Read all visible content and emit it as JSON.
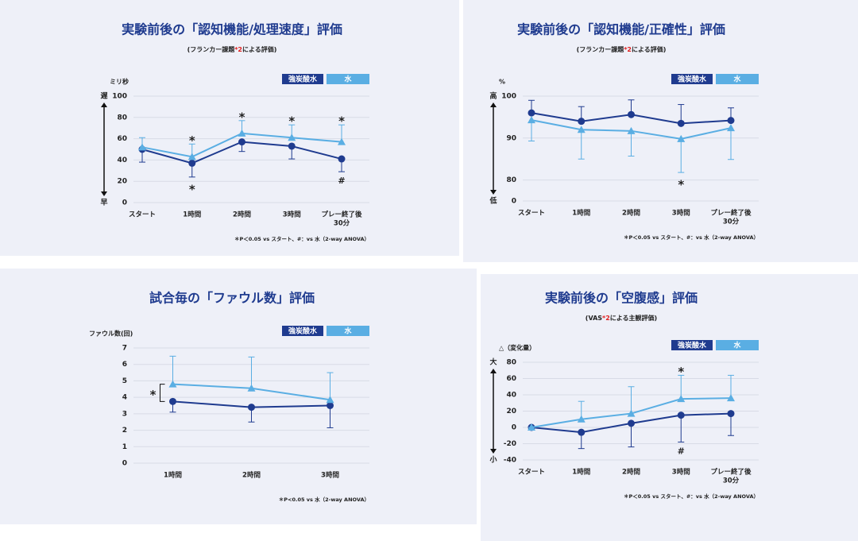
{
  "chart_data": [
    {
      "type": "line",
      "title": "実験前後の「認知機能/処理速度」評価",
      "subtitle": [
        {
          "text": "(フランカー課題"
        },
        {
          "text": "*2",
          "color": "#e02020"
        },
        {
          "text": "による評価)"
        }
      ],
      "y_label": "ミリ秒",
      "direction_labels": [
        "遅",
        "早"
      ],
      "categories": [
        "スタート",
        "1時間",
        "2時間",
        "3時間",
        [
          "プレー終了後",
          "30分"
        ]
      ],
      "ylim": [
        0,
        100
      ],
      "yticks": [
        0,
        20,
        40,
        60,
        80,
        100
      ],
      "grid": true,
      "series": [
        {
          "name": "強炭酸水",
          "color": "#1f3b8f",
          "marker": "circle",
          "error_direction": "down",
          "values": [
            50,
            37,
            57,
            53,
            41
          ],
          "errors": [
            12,
            13,
            9,
            12,
            12
          ]
        },
        {
          "name": "水",
          "color": "#5aaee3",
          "marker": "triangle",
          "error_direction": "up",
          "values": [
            52,
            43,
            65,
            61,
            57
          ],
          "errors": [
            9,
            12,
            12,
            12,
            16
          ]
        }
      ],
      "annotations": [
        {
          "category": 1,
          "text": "*",
          "position": "above"
        },
        {
          "category": 1,
          "text": "*",
          "position": "below"
        },
        {
          "category": 2,
          "text": "*",
          "position": "above"
        },
        {
          "category": 3,
          "text": "*",
          "position": "above"
        },
        {
          "category": 4,
          "text": "*",
          "position": "above"
        },
        {
          "category": 4,
          "text": "#",
          "position": "below"
        }
      ],
      "footnote": "＊P＜0.05 vs スタート、#：vs 水（2-way ANOVA）"
    },
    {
      "type": "line",
      "title": "実験前後の「認知機能/正確性」評価",
      "subtitle": [
        {
          "text": "(フランカー課題"
        },
        {
          "text": "*2",
          "color": "#e02020"
        },
        {
          "text": "による評価)"
        }
      ],
      "y_label": "%",
      "direction_labels": [
        "高",
        "低"
      ],
      "categories": [
        "スタート",
        "1時間",
        "2時間",
        "3時間",
        [
          "プレー終了後",
          "30分"
        ]
      ],
      "ylim": [
        75,
        100
      ],
      "yticks": [
        0,
        80,
        90,
        100
      ],
      "axis_break": true,
      "grid": true,
      "series": [
        {
          "name": "強炭酸水",
          "color": "#1f3b8f",
          "marker": "circle",
          "error_direction": "up",
          "values": [
            96,
            94,
            95.6,
            93.5,
            94.2
          ],
          "errors": [
            3,
            3.5,
            3.5,
            4.5,
            3
          ]
        },
        {
          "name": "水",
          "color": "#5aaee3",
          "marker": "triangle",
          "error_direction": "down",
          "values": [
            94.3,
            92,
            91.7,
            89.8,
            92.4
          ],
          "errors": [
            5,
            7,
            6,
            8,
            7.5
          ]
        }
      ],
      "annotations": [
        {
          "category": 3,
          "text": "*",
          "position": "below"
        }
      ],
      "footnote": "＊P＜0.05 vs スタート、#：vs 水（2-way ANOVA）"
    },
    {
      "type": "line",
      "title": "試合毎の「ファウル数」評価",
      "y_label": "ファウル数(回)",
      "categories": [
        "1時間",
        "2時間",
        "3時間"
      ],
      "ylim": [
        0,
        7
      ],
      "yticks": [
        0,
        1,
        2,
        3,
        4,
        5,
        6,
        7
      ],
      "grid": true,
      "series": [
        {
          "name": "強炭酸水",
          "color": "#1f3b8f",
          "marker": "circle",
          "error_direction": "down",
          "values": [
            3.75,
            3.4,
            3.5
          ],
          "errors": [
            0.65,
            0.9,
            1.35
          ]
        },
        {
          "name": "水",
          "color": "#5aaee3",
          "marker": "triangle",
          "error_direction": "up",
          "values": [
            4.8,
            4.55,
            3.85
          ],
          "errors": [
            1.7,
            1.9,
            1.65
          ]
        }
      ],
      "annotations": [
        {
          "category": 0,
          "text": "*",
          "position": "between"
        }
      ],
      "footnote": "＊P<0.05 vs 水（2-way ANOVA）"
    },
    {
      "type": "line",
      "title": "実験前後の「空腹感」評価",
      "subtitle": [
        {
          "text": "(VAS"
        },
        {
          "text": "*2",
          "color": "#e02020"
        },
        {
          "text": "による主観評価)"
        }
      ],
      "y_label": "△（変化量）",
      "direction_labels": [
        "大",
        "小"
      ],
      "categories": [
        "スタート",
        "1時間",
        "2時間",
        "3時間",
        [
          "プレー終了後",
          "30分"
        ]
      ],
      "ylim": [
        -40,
        80
      ],
      "yticks": [
        -40,
        -20,
        0,
        20,
        40,
        60,
        80
      ],
      "grid": true,
      "series": [
        {
          "name": "強炭酸水",
          "color": "#1f3b8f",
          "marker": "circle",
          "error_direction": "down",
          "values": [
            0,
            -6,
            5,
            15,
            17
          ],
          "errors": [
            0,
            20,
            29,
            33,
            27
          ]
        },
        {
          "name": "水",
          "color": "#5aaee3",
          "marker": "triangle",
          "error_direction": "up",
          "values": [
            0,
            10,
            17,
            35,
            36
          ],
          "errors": [
            0,
            22,
            33,
            29,
            28
          ]
        }
      ],
      "annotations": [
        {
          "category": 3,
          "text": "*",
          "position": "above"
        },
        {
          "category": 3,
          "text": "#",
          "position": "below"
        }
      ],
      "footnote": "＊P＜0.05 vs スタート、#：vs 水（2-way ANOVA）"
    }
  ]
}
